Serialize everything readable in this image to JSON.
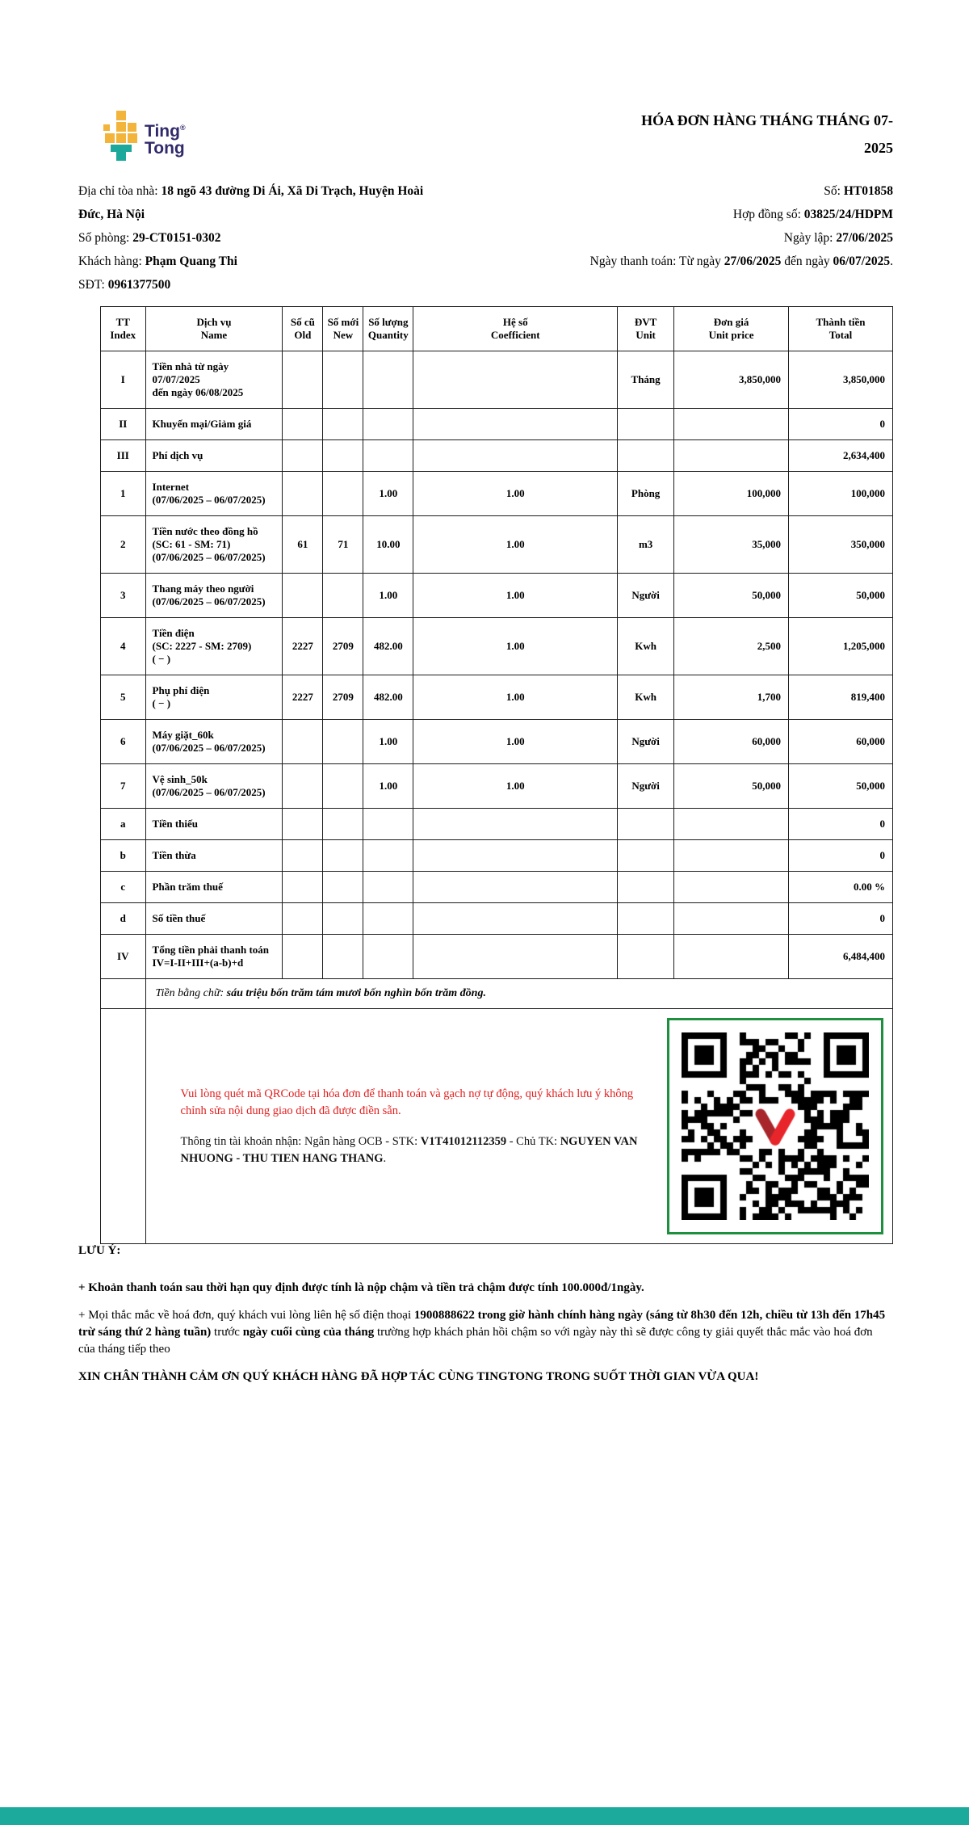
{
  "colors": {
    "logo_navy": "#302A6B",
    "logo_yellow": "#F3B43B",
    "logo_teal": "#1CA99B",
    "alert_red": "#E31E1E",
    "qr_border_green": "#1E8F3E",
    "bottom_bar_teal": "#1BAA9C"
  },
  "logo": {
    "line1": "Ting",
    "reg": "®",
    "line2": "Tong"
  },
  "header": {
    "title": "HÓA ĐƠN HÀNG THÁNG THÁNG 07-2025"
  },
  "info": {
    "left": [
      {
        "segs": [
          {
            "t": "Địa chỉ tòa nhà: "
          },
          {
            "t": "18 ngõ 43 đường Di Ái, Xã Di Trạch, Huyện Hoài Đức, Hà Nội",
            "b": true
          }
        ]
      },
      {
        "segs": [
          {
            "t": "Số phòng: "
          },
          {
            "t": "29-CT0151-0302",
            "b": true
          }
        ]
      },
      {
        "segs": [
          {
            "t": "Khách hàng: "
          },
          {
            "t": "Phạm Quang Thi",
            "b": true
          }
        ]
      },
      {
        "segs": [
          {
            "t": "SĐT: "
          },
          {
            "t": "0961377500",
            "b": true
          }
        ]
      }
    ],
    "right": [
      {
        "segs": [
          {
            "t": "Số: "
          },
          {
            "t": "HT01858",
            "b": true
          }
        ]
      },
      {
        "segs": [
          {
            "t": "Hợp đồng số: "
          },
          {
            "t": "03825/24/HDPM",
            "b": true
          }
        ]
      },
      {
        "segs": [
          {
            "t": "Ngày lập: "
          },
          {
            "t": "27/06/2025",
            "b": true
          }
        ]
      },
      {
        "segs": [
          {
            "t": "Ngày thanh toán: Từ ngày "
          },
          {
            "t": "27/06/2025",
            "b": true
          },
          {
            "t": " đến ngày "
          },
          {
            "t": "06/07/2025",
            "b": true
          },
          {
            "t": "."
          }
        ]
      }
    ]
  },
  "table": {
    "headers": [
      [
        "TT",
        "Index"
      ],
      [
        "Dịch vụ",
        "Name"
      ],
      [
        "Số cũ",
        "Old"
      ],
      [
        "Số mới",
        "New"
      ],
      [
        "Số lượng",
        "Quantity"
      ],
      [
        "Hệ số",
        "Coefficient"
      ],
      [
        "ĐVT",
        "Unit"
      ],
      [
        "Đơn giá",
        "Unit price"
      ],
      [
        "Thành tiền",
        "Total"
      ]
    ],
    "rows": [
      {
        "idx": "I",
        "name": [
          "Tiền nhà từ ngày 07/07/2025",
          "đến ngày 06/08/2025"
        ],
        "old": "",
        "new": "",
        "qty": "",
        "coef": "",
        "unit": "Tháng",
        "price": "3,850,000",
        "total": "3,850,000"
      },
      {
        "idx": "II",
        "name": [
          "Khuyến mại/Giảm giá"
        ],
        "old": "",
        "new": "",
        "qty": "",
        "coef": "",
        "unit": "",
        "price": "",
        "total": "0"
      },
      {
        "idx": "III",
        "name": [
          "Phí dịch vụ"
        ],
        "old": "",
        "new": "",
        "qty": "",
        "coef": "",
        "unit": "",
        "price": "",
        "total": "2,634,400"
      },
      {
        "idx": "1",
        "name": [
          "Internet",
          "(07/06/2025 – 06/07/2025)"
        ],
        "old": "",
        "new": "",
        "qty": "1.00",
        "coef": "1.00",
        "unit": "Phòng",
        "price": "100,000",
        "total": "100,000"
      },
      {
        "idx": "2",
        "name": [
          "Tiền nước theo đồng hồ",
          "(SC: 61 - SM: 71)",
          "(07/06/2025 – 06/07/2025)"
        ],
        "old": "61",
        "new": "71",
        "qty": "10.00",
        "coef": "1.00",
        "unit": "m3",
        "price": "35,000",
        "total": "350,000"
      },
      {
        "idx": "3",
        "name": [
          "Thang máy theo người",
          "(07/06/2025 – 06/07/2025)"
        ],
        "old": "",
        "new": "",
        "qty": "1.00",
        "coef": "1.00",
        "unit": "Người",
        "price": "50,000",
        "total": "50,000"
      },
      {
        "idx": "4",
        "name": [
          "Tiền điện",
          "(SC: 2227 - SM: 2709)",
          "( − )"
        ],
        "old": "2227",
        "new": "2709",
        "qty": "482.00",
        "coef": "1.00",
        "unit": "Kwh",
        "price": "2,500",
        "total": "1,205,000"
      },
      {
        "idx": "5",
        "name": [
          "Phụ phí điện",
          "( − )"
        ],
        "old": "2227",
        "new": "2709",
        "qty": "482.00",
        "coef": "1.00",
        "unit": "Kwh",
        "price": "1,700",
        "total": "819,400"
      },
      {
        "idx": "6",
        "name": [
          "Máy giặt_60k",
          "(07/06/2025 – 06/07/2025)"
        ],
        "old": "",
        "new": "",
        "qty": "1.00",
        "coef": "1.00",
        "unit": "Người",
        "price": "60,000",
        "total": "60,000"
      },
      {
        "idx": "7",
        "name": [
          "Vệ sinh_50k",
          "(07/06/2025 – 06/07/2025)"
        ],
        "old": "",
        "new": "",
        "qty": "1.00",
        "coef": "1.00",
        "unit": "Người",
        "price": "50,000",
        "total": "50,000"
      },
      {
        "idx": "a",
        "name": [
          "Tiền thiếu"
        ],
        "old": "",
        "new": "",
        "qty": "",
        "coef": "",
        "unit": "",
        "price": "",
        "total": "0"
      },
      {
        "idx": "b",
        "name": [
          "Tiền thừa"
        ],
        "old": "",
        "new": "",
        "qty": "",
        "coef": "",
        "unit": "",
        "price": "",
        "total": "0"
      },
      {
        "idx": "c",
        "name": [
          "Phần trăm thuế"
        ],
        "old": "",
        "new": "",
        "qty": "",
        "coef": "",
        "unit": "",
        "price": "",
        "total": "0.00 %"
      },
      {
        "idx": "d",
        "name": [
          "Số tiền thuế"
        ],
        "old": "",
        "new": "",
        "qty": "",
        "coef": "",
        "unit": "",
        "price": "",
        "total": "0"
      },
      {
        "idx": "IV",
        "name": [
          "Tổng tiền phải thanh toán",
          "IV=I-II+III+(a-b)+d"
        ],
        "old": "",
        "new": "",
        "qty": "",
        "coef": "",
        "unit": "",
        "price": "",
        "total": "6,484,400"
      }
    ],
    "amount_in_words": {
      "label": "Tiền bằng chữ: ",
      "value": "sáu triệu bốn trăm tám mươi bốn nghìn bốn trăm đồng."
    }
  },
  "payment": {
    "qr_note_red": "Vui lòng quét mã QRCode tại hóa đơn để thanh toán và gạch nợ tự động, quý khách lưu ý không chỉnh sửa nội dung giao dịch đã được điền sẵn.",
    "account_segs": [
      {
        "t": "Thông tin tài khoản nhận: Ngân hàng OCB - STK: "
      },
      {
        "t": "V1T41012112359",
        "b": true
      },
      {
        "t": " - Chủ TK: "
      },
      {
        "t": "NGUYEN VAN NHUONG - THU TIEN HANG THANG",
        "b": true
      },
      {
        "t": "."
      }
    ]
  },
  "footer": {
    "heading": "LƯU Ý:",
    "note1": "+ Khoản thanh toán sau thời hạn quy định được tính là nộp chậm và tiền trả chậm được tính 100.000đ/1ngày.",
    "note2_segs": [
      {
        "t": "+ Mọi thắc mắc về hoá đơn, quý khách vui lòng liên hệ số điện thoại "
      },
      {
        "t": "1900888622 trong giờ hành chính hàng ngày (sáng từ 8h30 đến 12h, chiều từ 13h đến 17h45 trừ sáng thứ 2 hàng tuần)",
        "b": true
      },
      {
        "t": " trước "
      },
      {
        "t": "ngày cuối cùng của tháng",
        "b": true
      },
      {
        "t": " trường hợp khách phản hồi chậm so với ngày này thì sẽ được công ty giải quyết thắc mắc vào hoá đơn của tháng tiếp theo"
      }
    ],
    "thanks": "XIN CHÂN THÀNH CẢM ƠN QUÝ KHÁCH HÀNG ĐÃ HỢP TÁC CÙNG TINGTONG TRONG SUỐT THỜI GIAN VỪA QUA!"
  }
}
